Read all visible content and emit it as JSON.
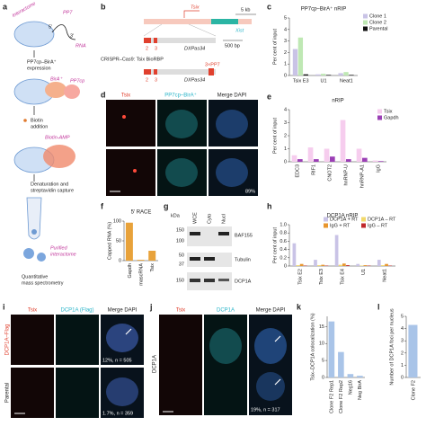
{
  "panels": {
    "a": {
      "letter": "a",
      "interactome": "Interactome",
      "pp7": "PP7",
      "rna": "RNA",
      "five_prime": "5′",
      "three_prime": "3′",
      "expression_1": "PP7cp–BirA⁺",
      "expression_2": "expression",
      "birA": "BirA⁺",
      "pp7cp": "PP7cp",
      "biotin_1": "Biotin",
      "biotin_2": "addition",
      "biotin_amp": "Biotin-AMP",
      "capture_1": "Denaturation and",
      "capture_2": "streptavidin capture",
      "purified_1": "Purified",
      "purified_2": "interactome",
      "ms_1": "Quantitative",
      "ms_2": "mass spectrometry"
    },
    "b": {
      "letter": "b",
      "tsix": "Tsix",
      "scale_1": "5 kb",
      "xist": "Xist",
      "dxpas_1": "DXPas34",
      "scale_2": "500 bp",
      "exon_2": "2",
      "exon_3": "3",
      "crispr": "CRISPR–Cas9: Tsix BioRBP",
      "pp7x3": "3×PP7",
      "exon_2b": "2",
      "exon_3b": "3",
      "dxpas_2": "DXPas34"
    },
    "d": {
      "letter": "d",
      "col_1": "Tsix",
      "col_2": "PP7cp–BirA⁺",
      "col_3": "Merge DAPI",
      "pct": "89%"
    },
    "g": {
      "letter": "g",
      "kda": "kDa",
      "lane_1": "WCE",
      "lane_2": "Cyto",
      "lane_3": "Nucl",
      "marker_1": "150",
      "marker_2": "100",
      "marker_3": "50",
      "marker_4": "37",
      "marker_5": "150",
      "blot_1": "BAF155",
      "blot_2": "Tubulin",
      "blot_3": "DCP1A"
    },
    "i": {
      "letter": "i",
      "col_1": "Tsix",
      "col_2": "DCP1A (Flag)",
      "col_3": "Merge DAPI",
      "row_1": "DCP1A–Flag",
      "row_2": "Parental",
      "stat_1": "12%, n = 505",
      "stat_2": "1.7%, n = 359"
    },
    "j": {
      "letter": "j",
      "col_1": "Tsix",
      "col_2": "DCP1A",
      "col_3": "Merge DAPI",
      "row_1": "DCP1A",
      "stat_1": "19%, n = 317"
    }
  },
  "chart_data": [
    {
      "type": "bar",
      "letter": "c",
      "title": "PP7cp–BirA⁺ nRIP",
      "y_label": "Per cent of input",
      "categories": [
        "Tsix E3",
        "U1",
        "Neat1"
      ],
      "series": [
        {
          "name": "Clone 1",
          "color": "#c9c3e6",
          "values": [
            2.3,
            0.1,
            0.2
          ]
        },
        {
          "name": "Clone 2",
          "color": "#bfe8b4",
          "values": [
            3.3,
            0.15,
            0.3
          ]
        },
        {
          "name": "Parental",
          "color": "#111111",
          "values": [
            0.1,
            0.05,
            0.05
          ]
        }
      ],
      "ylim": [
        0,
        5
      ],
      "yticks": [
        0,
        1,
        2,
        3,
        4,
        5
      ]
    },
    {
      "type": "bar",
      "letter": "e",
      "title": "nRIP",
      "y_label": "Per cent of input",
      "categories": [
        "EDC3",
        "RIF1",
        "CNOT2",
        "hnRNP-U",
        "hnRNP-A1",
        "IgG"
      ],
      "series": [
        {
          "name": "Tsix",
          "color": "#f6cdee",
          "values": [
            0.5,
            1.1,
            1.0,
            3.2,
            1.0,
            0.1
          ]
        },
        {
          "name": "Gapdh",
          "color": "#9b3fb5",
          "values": [
            0.2,
            0.2,
            0.4,
            0.2,
            0.3,
            0.05
          ]
        }
      ],
      "ylim": [
        0,
        4
      ],
      "yticks": [
        0,
        1,
        2,
        3,
        4
      ]
    },
    {
      "type": "bar",
      "letter": "f",
      "title": "5′ RACE",
      "y_label": "Capped RNA (%)",
      "categories": [
        "Gapdh",
        "mascRNA",
        "Tsix"
      ],
      "values": [
        96,
        2,
        25
      ],
      "color": "#e8a23a",
      "ylim": [
        0,
        100
      ],
      "yticks": [
        0,
        50,
        100
      ]
    },
    {
      "type": "bar",
      "letter": "h",
      "title": "DCP1A nRIP",
      "y_label": "Per cent of input",
      "categories": [
        "Tsix E2",
        "Tsix E3",
        "Tsix E4",
        "U1",
        "Neat1"
      ],
      "series": [
        {
          "name": "DCP1A + RT",
          "color": "#c9c3e6",
          "values": [
            0.55,
            0.15,
            0.75,
            0.05,
            0.15
          ]
        },
        {
          "name": "DCP1A – RT",
          "color": "#f2d96b",
          "values": [
            0.02,
            0.02,
            0.03,
            0.01,
            0.02
          ]
        },
        {
          "name": "IgG + RT",
          "color": "#e8962e",
          "values": [
            0.05,
            0.03,
            0.06,
            0.02,
            0.05
          ]
        },
        {
          "name": "IgG – RT",
          "color": "#c0282a",
          "values": [
            0.01,
            0.01,
            0.02,
            0.01,
            0.01
          ]
        }
      ],
      "ylim": [
        0,
        1
      ],
      "yticks": [
        0,
        0.2,
        0.4,
        0.6,
        0.8,
        {
          "value": 1,
          "label": "1.0"
        }
      ]
    },
    {
      "type": "bar",
      "letter": "k",
      "y_label": "Tsix–DCP1A colocalization (%)",
      "categories": [
        "Clone F2 Rep1",
        "Clone F2 Rep2",
        "Neg16",
        "Neg BirA"
      ],
      "values": [
        16.5,
        7.5,
        1,
        0.5
      ],
      "color": "#a9c4e8",
      "ylim": [
        0,
        18
      ],
      "yticks": [
        0,
        5,
        10,
        15
      ]
    },
    {
      "type": "bar",
      "letter": "l",
      "y_label": "Number of DCP1A foci per nucleus",
      "categories": [
        "Clone F2"
      ],
      "values": [
        4.3
      ],
      "color": "#a9c4e8",
      "ylim": [
        0,
        5
      ],
      "yticks": [
        0,
        1,
        2,
        3,
        4,
        5
      ]
    }
  ]
}
